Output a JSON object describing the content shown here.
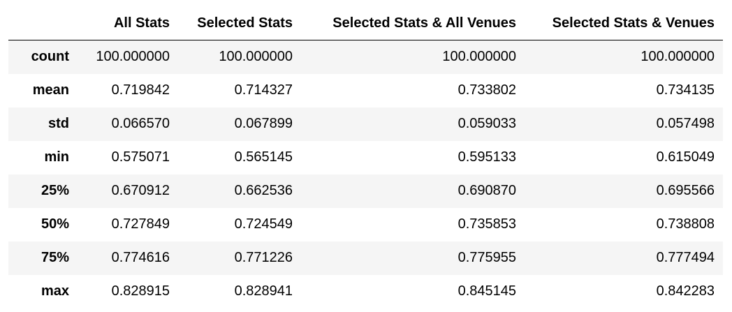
{
  "table": {
    "columns": [
      "",
      "All Stats",
      "Selected Stats",
      "Selected Stats & All Venues",
      "Selected Stats & Venues"
    ],
    "rows": [
      {
        "label": "count",
        "values": [
          "100.000000",
          "100.000000",
          "100.000000",
          "100.000000"
        ]
      },
      {
        "label": "mean",
        "values": [
          "0.719842",
          "0.714327",
          "0.733802",
          "0.734135"
        ]
      },
      {
        "label": "std",
        "values": [
          "0.066570",
          "0.067899",
          "0.059033",
          "0.057498"
        ]
      },
      {
        "label": "min",
        "values": [
          "0.575071",
          "0.565145",
          "0.595133",
          "0.615049"
        ]
      },
      {
        "label": "25%",
        "values": [
          "0.670912",
          "0.662536",
          "0.690870",
          "0.695566"
        ]
      },
      {
        "label": "50%",
        "values": [
          "0.727849",
          "0.724549",
          "0.735853",
          "0.738808"
        ]
      },
      {
        "label": "75%",
        "values": [
          "0.774616",
          "0.771226",
          "0.775955",
          "0.777494"
        ]
      },
      {
        "label": "max",
        "values": [
          "0.828915",
          "0.828941",
          "0.845145",
          "0.842283"
        ]
      }
    ]
  },
  "colors": {
    "stripe": "#f5f5f5",
    "background": "#ffffff",
    "text": "#000000",
    "header_rule": "#000000"
  }
}
